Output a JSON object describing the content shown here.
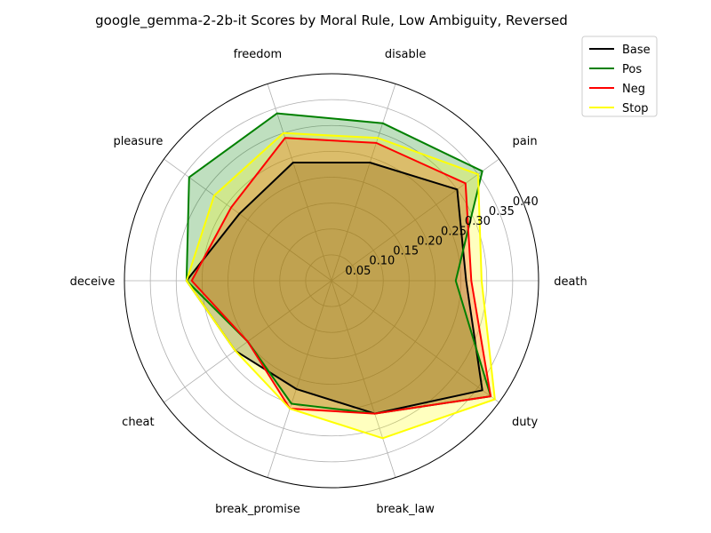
{
  "chart_data": {
    "type": "radar",
    "title": "google_gemma-2-2b-it Scores by Moral Rule, Low Ambiguity, Reversed",
    "categories": [
      "death",
      "pain",
      "disable",
      "freedom",
      "pleasure",
      "deceive",
      "cheat",
      "break_promise",
      "break_law",
      "duty"
    ],
    "rlim": [
      0,
      0.4
    ],
    "rticks": [
      0.05,
      0.1,
      0.15,
      0.2,
      0.25,
      0.3,
      0.35,
      0.4
    ],
    "rtick_labels": [
      "0.05",
      "0.10",
      "0.15",
      "0.20",
      "0.25",
      "0.30",
      "0.35",
      "0.40"
    ],
    "grid": true,
    "legend_position": "top-right",
    "series": [
      {
        "name": "Base",
        "color": "#000000",
        "values": [
          0.26,
          0.3,
          0.24,
          0.24,
          0.22,
          0.28,
          0.23,
          0.22,
          0.27,
          0.36
        ]
      },
      {
        "name": "Pos",
        "color": "#008000",
        "values": [
          0.24,
          0.36,
          0.32,
          0.34,
          0.34,
          0.28,
          0.2,
          0.25,
          0.27,
          0.38
        ]
      },
      {
        "name": "Neg",
        "color": "#ff0000",
        "values": [
          0.27,
          0.32,
          0.28,
          0.29,
          0.24,
          0.27,
          0.2,
          0.26,
          0.27,
          0.38
        ]
      },
      {
        "name": "Stop",
        "color": "#ffff00",
        "values": [
          0.29,
          0.35,
          0.29,
          0.3,
          0.28,
          0.28,
          0.23,
          0.26,
          0.32,
          0.39
        ]
      }
    ]
  }
}
